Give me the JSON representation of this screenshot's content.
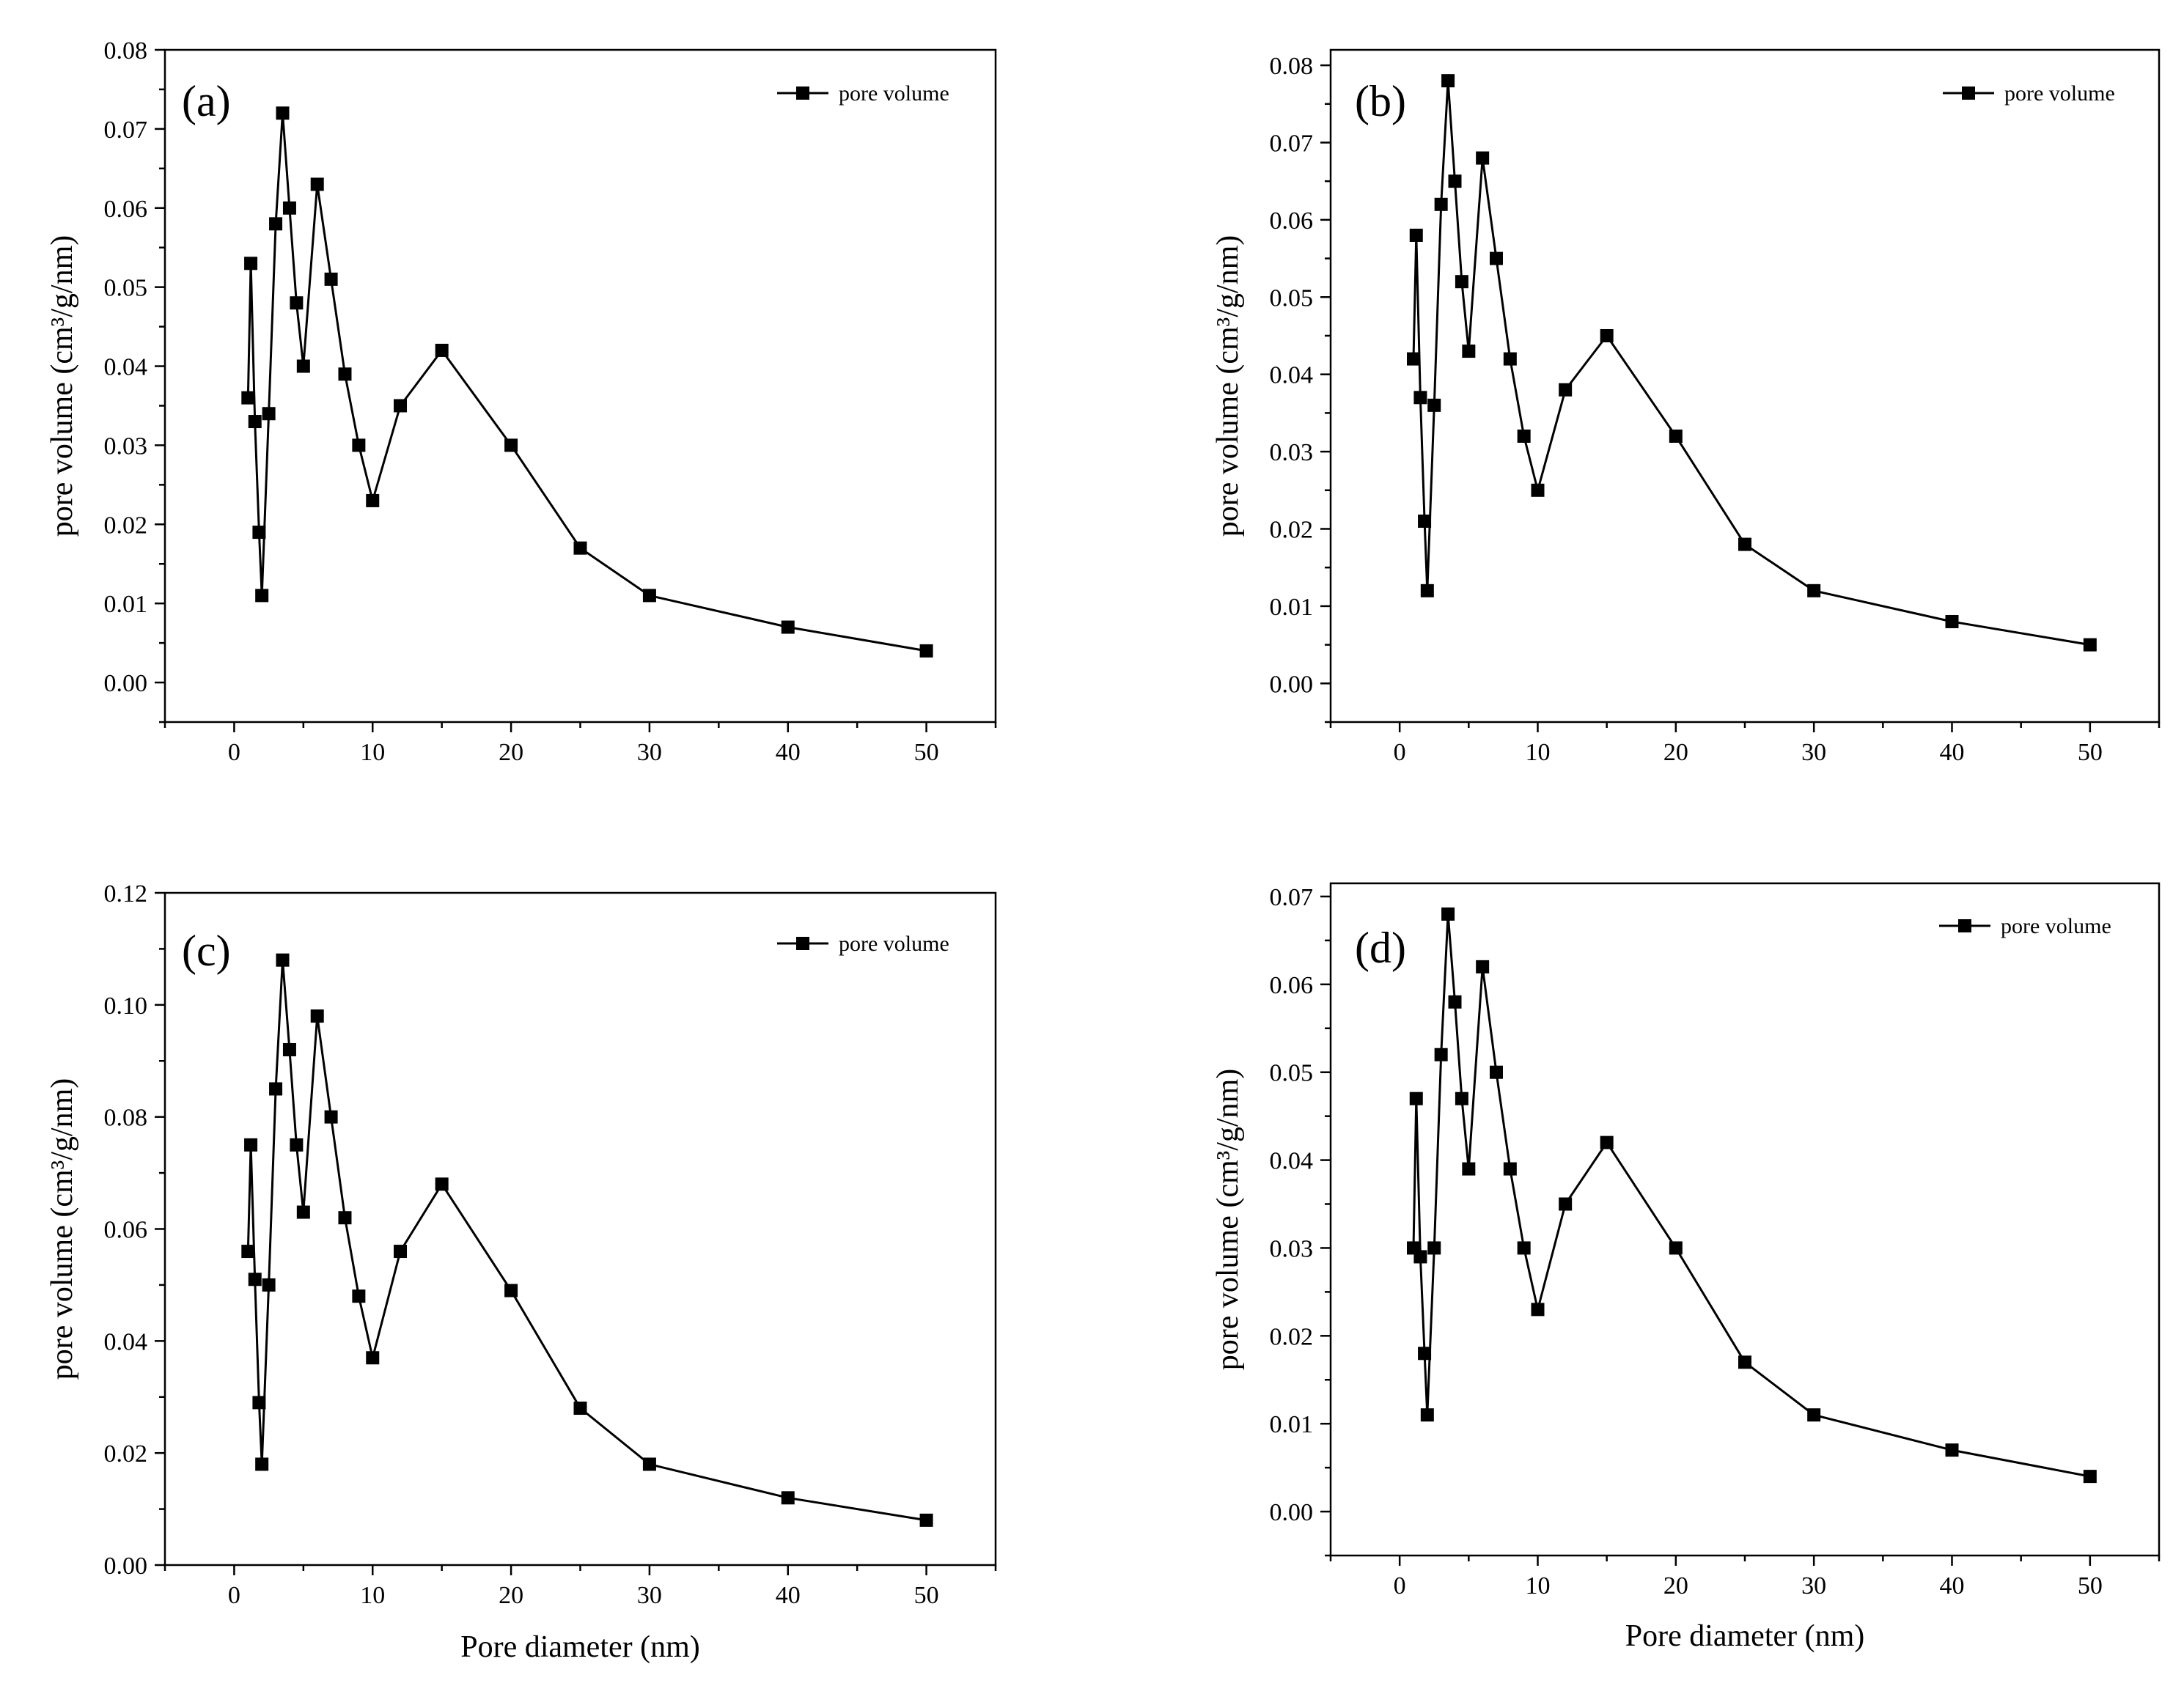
{
  "colors": {
    "line": "#000000",
    "marker": "#000000",
    "background": "#ffffff"
  },
  "chart_data": [
    {
      "type": "line",
      "panel": "(a)",
      "legend": "pore volume",
      "xlabel": "",
      "ylabel": "pore volume (cm³/g/nm)",
      "xlim": [
        -5,
        55
      ],
      "ylim": [
        -0.005,
        0.08
      ],
      "xticks": [
        0,
        10,
        20,
        30,
        40,
        50
      ],
      "xtick_labels": [
        "0",
        "10",
        "20",
        "30",
        "40",
        "50"
      ],
      "yticks": [
        0,
        0.01,
        0.02,
        0.03,
        0.04,
        0.05,
        0.06,
        0.07,
        0.08
      ],
      "ytick_labels": [
        "0.00",
        "0.01",
        "0.02",
        "0.03",
        "0.04",
        "0.05",
        "0.06",
        "0.07",
        "0.08"
      ],
      "series": [
        {
          "name": "pore volume",
          "x": [
            1,
            1.2,
            1.5,
            1.8,
            2,
            2.5,
            3,
            3.5,
            4,
            4.5,
            5,
            6,
            7,
            8,
            9,
            10,
            12,
            15,
            20,
            25,
            30,
            40,
            50
          ],
          "y": [
            0.036,
            0.053,
            0.033,
            0.019,
            0.011,
            0.034,
            0.058,
            0.072,
            0.06,
            0.048,
            0.04,
            0.063,
            0.051,
            0.039,
            0.03,
            0.023,
            0.035,
            0.042,
            0.03,
            0.017,
            0.011,
            0.007,
            0.004
          ]
        }
      ]
    },
    {
      "type": "line",
      "panel": "(b)",
      "legend": "pore volume",
      "xlabel": "",
      "ylabel": "pore volume (cm³/g/nm)",
      "xlim": [
        -5,
        55
      ],
      "ylim": [
        -0.005,
        0.082
      ],
      "xticks": [
        0,
        10,
        20,
        30,
        40,
        50
      ],
      "xtick_labels": [
        "0",
        "10",
        "20",
        "30",
        "40",
        "50"
      ],
      "yticks": [
        0,
        0.01,
        0.02,
        0.03,
        0.04,
        0.05,
        0.06,
        0.07,
        0.08
      ],
      "ytick_labels": [
        "0.00",
        "0.01",
        "0.02",
        "0.03",
        "0.04",
        "0.05",
        "0.06",
        "0.07",
        "0.08"
      ],
      "series": [
        {
          "name": "pore volume",
          "x": [
            1,
            1.2,
            1.5,
            1.8,
            2,
            2.5,
            3,
            3.5,
            4,
            4.5,
            5,
            6,
            7,
            8,
            9,
            10,
            12,
            15,
            20,
            25,
            30,
            40,
            50
          ],
          "y": [
            0.042,
            0.058,
            0.037,
            0.021,
            0.012,
            0.036,
            0.062,
            0.078,
            0.065,
            0.052,
            0.043,
            0.068,
            0.055,
            0.042,
            0.032,
            0.025,
            0.038,
            0.045,
            0.032,
            0.018,
            0.012,
            0.008,
            0.005
          ]
        }
      ]
    },
    {
      "type": "line",
      "panel": "(c)",
      "legend": "pore volume",
      "xlabel": "Pore diameter (nm)",
      "ylabel": "pore volume (cm³/g/nm)",
      "xlim": [
        -5,
        55
      ],
      "ylim": [
        0,
        0.12
      ],
      "xticks": [
        0,
        10,
        20,
        30,
        40,
        50
      ],
      "xtick_labels": [
        "0",
        "10",
        "20",
        "30",
        "40",
        "50"
      ],
      "yticks": [
        0,
        0.02,
        0.04,
        0.06,
        0.08,
        0.1,
        0.12
      ],
      "ytick_labels": [
        "0.00",
        "0.02",
        "0.04",
        "0.06",
        "0.08",
        "0.10",
        "0.12"
      ],
      "series": [
        {
          "name": "pore volume",
          "x": [
            1,
            1.2,
            1.5,
            1.8,
            2,
            2.5,
            3,
            3.5,
            4,
            4.5,
            5,
            6,
            7,
            8,
            9,
            10,
            12,
            15,
            20,
            25,
            30,
            40,
            50
          ],
          "y": [
            0.056,
            0.075,
            0.051,
            0.029,
            0.018,
            0.05,
            0.085,
            0.108,
            0.092,
            0.075,
            0.063,
            0.098,
            0.08,
            0.062,
            0.048,
            0.037,
            0.056,
            0.068,
            0.049,
            0.028,
            0.018,
            0.012,
            0.008
          ]
        }
      ]
    },
    {
      "type": "line",
      "panel": "(d)",
      "legend": "pore volume",
      "xlabel": "Pore diameter (nm)",
      "ylabel": "pore volume (cm³/g/nm)",
      "xlim": [
        -5,
        55
      ],
      "ylim": [
        -0.005,
        0.0715
      ],
      "xticks": [
        0,
        10,
        20,
        30,
        40,
        50
      ],
      "xtick_labels": [
        "0",
        "10",
        "20",
        "30",
        "40",
        "50"
      ],
      "yticks": [
        0,
        0.01,
        0.02,
        0.03,
        0.04,
        0.05,
        0.06,
        0.07
      ],
      "ytick_labels": [
        "0.00",
        "0.01",
        "0.02",
        "0.03",
        "0.04",
        "0.05",
        "0.06",
        "0.07"
      ],
      "series": [
        {
          "name": "pore volume",
          "x": [
            1,
            1.2,
            1.5,
            1.8,
            2,
            2.5,
            3,
            3.5,
            4,
            4.5,
            5,
            6,
            7,
            8,
            9,
            10,
            12,
            15,
            20,
            25,
            30,
            40,
            50
          ],
          "y": [
            0.03,
            0.047,
            0.029,
            0.018,
            0.011,
            0.03,
            0.052,
            0.068,
            0.058,
            0.047,
            0.039,
            0.062,
            0.05,
            0.039,
            0.03,
            0.023,
            0.035,
            0.042,
            0.03,
            0.017,
            0.011,
            0.007,
            0.004
          ]
        }
      ]
    }
  ]
}
